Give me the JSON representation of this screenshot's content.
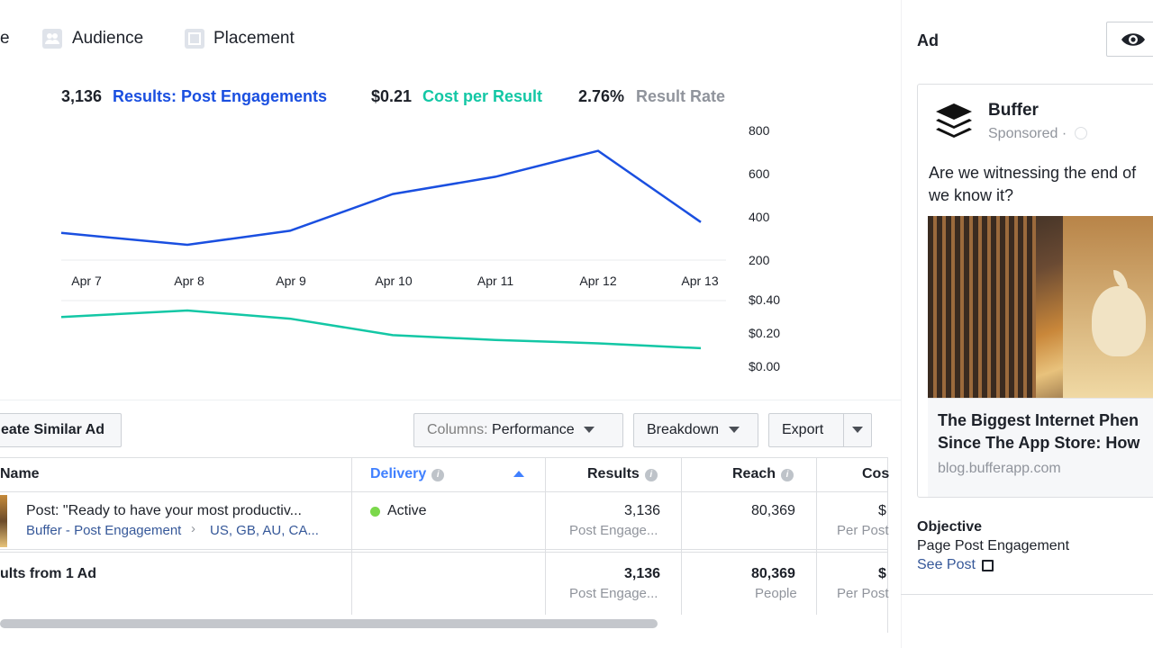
{
  "tabs": [
    {
      "label": "e"
    },
    {
      "label": "Audience"
    },
    {
      "label": "Placement"
    }
  ],
  "metrics": {
    "results_value": "3,136",
    "results_label": "Results: Post Engagements",
    "cost_value": "$0.21",
    "cost_label": "Cost per Result",
    "rate_value": "2.76%",
    "rate_label": "Result Rate"
  },
  "colors": {
    "blue": "#1a4fe0",
    "teal": "#13c7a5",
    "grey": "#90949c"
  },
  "chart_data": [
    {
      "type": "line",
      "title": "Results: Post Engagements",
      "categories": [
        "Apr 7",
        "Apr 8",
        "Apr 9",
        "Apr 10",
        "Apr 11",
        "Apr 12",
        "Apr 13"
      ],
      "series": [
        {
          "name": "Results",
          "values": [
            330,
            275,
            340,
            510,
            590,
            710,
            380
          ]
        }
      ],
      "x_start": 0.0,
      "y_ticks": [
        "800",
        "600",
        "400",
        "200"
      ],
      "ylim": [
        200,
        800
      ]
    },
    {
      "type": "line",
      "title": "Cost per Result",
      "categories": [
        "Apr 7",
        "Apr 8",
        "Apr 9",
        "Apr 10",
        "Apr 11",
        "Apr 12",
        "Apr 13"
      ],
      "series": [
        {
          "name": "Cost per Result",
          "values": [
            0.3,
            0.34,
            0.29,
            0.19,
            0.16,
            0.14,
            0.11
          ]
        }
      ],
      "y_ticks": [
        "$0.40",
        "$0.20",
        "$0.00"
      ],
      "ylim": [
        0,
        0.4
      ]
    }
  ],
  "toolbar": {
    "create_similar": "eate Similar Ad",
    "columns_prefix": "Columns:",
    "columns_value": "Performance",
    "breakdown": "Breakdown",
    "export": "Export"
  },
  "table": {
    "headers": {
      "name": "Name",
      "delivery": "Delivery",
      "results": "Results",
      "reach": "Reach",
      "cost": "Cos"
    },
    "row": {
      "title": "Post: \"Ready to have your most productiv...",
      "campaign": "Buffer - Post Engagement",
      "targeting": "US, GB, AU, CA...",
      "delivery": "Active",
      "results": "3,136",
      "results_sub": "Post Engage...",
      "reach": "80,369",
      "cost": "$",
      "cost_sub": "Per Post"
    },
    "summary": {
      "title": "ults from 1 Ad",
      "results": "3,136",
      "results_sub": "Post Engage...",
      "reach": "80,369",
      "reach_sub": "People",
      "cost": "$",
      "cost_sub": "Per Post"
    }
  },
  "preview": {
    "heading": "Ad",
    "page_name": "Buffer",
    "sponsored": "Sponsored ·",
    "body_line1": "Are we witnessing the end of",
    "body_line2": "we know it?",
    "headline_line1": "The Biggest Internet Phen",
    "headline_line2": "Since The App Store: How",
    "domain": "blog.bufferapp.com",
    "objective_label": "Objective",
    "objective_value": "Page Post Engagement",
    "see_post": "See Post"
  }
}
